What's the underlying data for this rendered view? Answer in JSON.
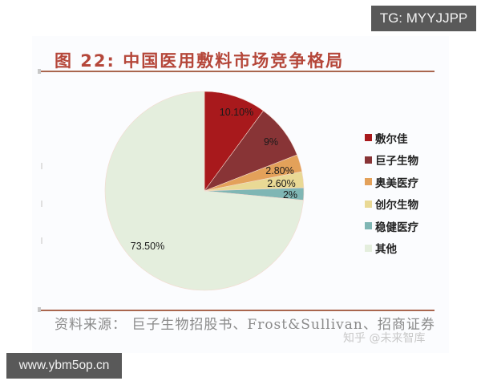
{
  "header": {
    "title": "图 22: 中国医用敷料市场竞争格局"
  },
  "footer": {
    "source": "资料来源： 巨子生物招股书、Frost&Sullivan、招商证券",
    "platform_watermark": "知乎 @未来智库"
  },
  "watermarks": {
    "top_right": "TG: MYYJJPP",
    "bottom_left": "www.ybm5op.cn"
  },
  "chart_data": {
    "type": "pie",
    "title": "图 22: 中国医用敷料市场竞争格局",
    "categories": [
      "敷尔佳",
      "巨子生物",
      "奥美医疗",
      "创尔生物",
      "稳健医疗",
      "其他"
    ],
    "values": [
      10.1,
      9.0,
      2.8,
      2.6,
      2.0,
      73.5
    ],
    "labels": [
      "10.10%",
      "9%",
      "2.80%",
      "2.60%",
      "2%",
      "73.50%"
    ],
    "colors": [
      "#a8191c",
      "#883436",
      "#e3a15a",
      "#e9d995",
      "#7fb6b4",
      "#e4eedd"
    ],
    "start_angle": "12 o'clock, clockwise",
    "legend_position": "right",
    "unit": "%"
  },
  "legend": {
    "items": [
      {
        "label": "敷尔佳",
        "color": "#a8191c"
      },
      {
        "label": "巨子生物",
        "color": "#883436"
      },
      {
        "label": "奥美医疗",
        "color": "#e3a15a"
      },
      {
        "label": "创尔生物",
        "color": "#e9d995"
      },
      {
        "label": "稳健医疗",
        "color": "#7fb6b4"
      },
      {
        "label": "其他",
        "color": "#e4eedd"
      }
    ]
  },
  "pie_labels": {
    "s0": "10.10%",
    "s1": "9%",
    "s2": "2.80%",
    "s3": "2.60%",
    "s4": "2%",
    "s5": "73.50%"
  }
}
